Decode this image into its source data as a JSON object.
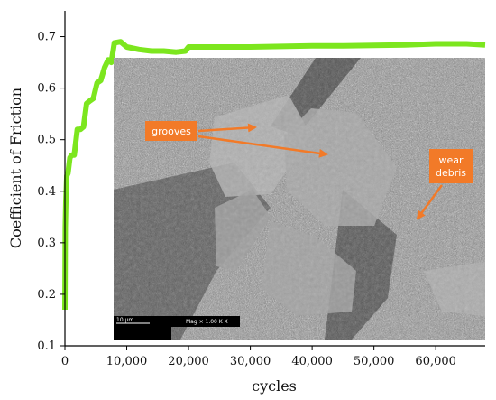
{
  "chart_data": {
    "type": "line",
    "xlabel": "cycles",
    "ylabel": "Coefficient of Friction",
    "xlim": [
      0,
      68000
    ],
    "ylim": [
      0.1,
      0.75
    ],
    "x_ticks": [
      0,
      10000,
      20000,
      30000,
      40000,
      50000,
      60000
    ],
    "x_tick_labels": [
      "0",
      "10,000",
      "20,000",
      "30,000",
      "40,000",
      "50,000",
      "60,000"
    ],
    "y_ticks": [
      0.1,
      0.2,
      0.3,
      0.4,
      0.5,
      0.6,
      0.7
    ],
    "y_tick_labels": [
      "0.1",
      "0.2",
      "0.3",
      "0.4",
      "0.5",
      "0.6",
      "0.7"
    ],
    "series": [
      {
        "color": "#7CE61E",
        "x": [
          0,
          60,
          150,
          300,
          500,
          800,
          1100,
          1500,
          2000,
          2500,
          3000,
          3500,
          4000,
          4600,
          5200,
          5800,
          6400,
          7000,
          7500,
          8000,
          9000,
          10000,
          12000,
          14000,
          16000,
          18000,
          19500,
          20000,
          25000,
          30000,
          35000,
          40000,
          45000,
          50000,
          55000,
          60000,
          65000,
          68000
        ],
        "y": [
          0.17,
          0.33,
          0.38,
          0.43,
          0.435,
          0.465,
          0.47,
          0.47,
          0.52,
          0.52,
          0.525,
          0.57,
          0.575,
          0.58,
          0.61,
          0.615,
          0.64,
          0.655,
          0.65,
          0.688,
          0.69,
          0.68,
          0.675,
          0.672,
          0.672,
          0.67,
          0.672,
          0.68,
          0.68,
          0.68,
          0.681,
          0.682,
          0.682,
          0.683,
          0.684,
          0.686,
          0.686,
          0.684
        ]
      }
    ]
  },
  "inset": {
    "annotations": [
      "grooves",
      "wear\ndebris"
    ],
    "scale_bar_label": "10 µm",
    "info_label": "Mag ×   1.00 K X",
    "callout_color": "#F27A28"
  }
}
